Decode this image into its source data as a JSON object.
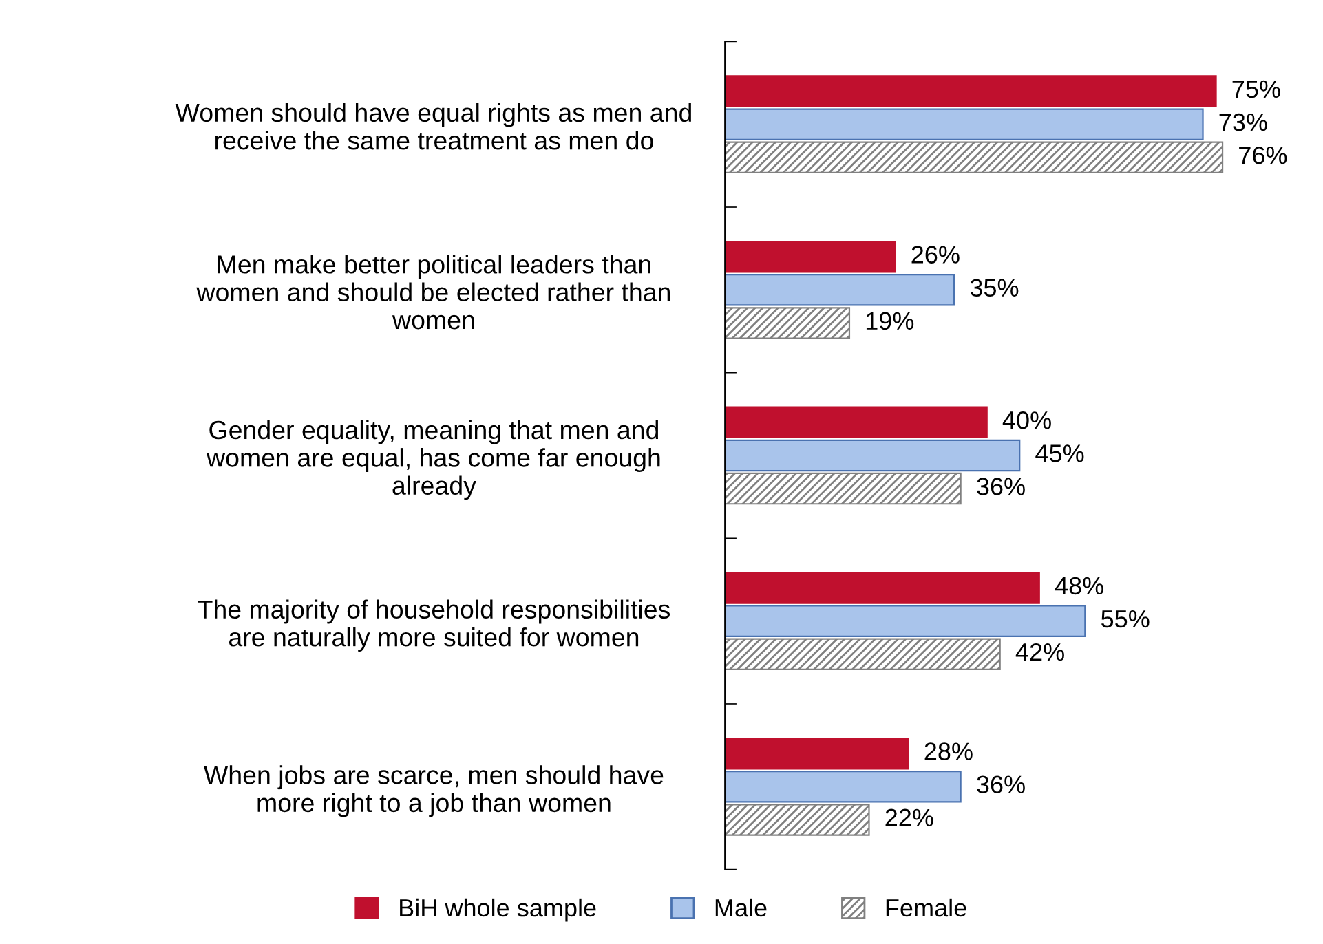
{
  "chart_data": {
    "type": "bar",
    "orientation": "horizontal",
    "legend": "bottom",
    "grid": false,
    "categories": [
      "Women should have equal rights as men and\nreceive the same treatment as men do",
      "Men make better political leaders than\nwomen and should be elected rather than\nwomen",
      "Gender equality, meaning that men and\nwomen are equal, has come far enough\nalready",
      "The majority of household responsibilities\nare naturally more suited for women",
      "When jobs are scarce, men should have\nmore right to a job than women"
    ],
    "series": [
      {
        "name": "BiH whole sample",
        "color": "#c0102e",
        "values": [
          75,
          26,
          40,
          48,
          28
        ],
        "value_labels": [
          "75%",
          "26%",
          "40%",
          "48%",
          "28%"
        ]
      },
      {
        "name": "Male",
        "color": "#a9c4eb",
        "values": [
          73,
          35,
          45,
          55,
          36
        ],
        "value_labels": [
          "73%",
          "35%",
          "45%",
          "55%",
          "36%"
        ]
      },
      {
        "name": "Female",
        "color": "#808080",
        "values": [
          76,
          19,
          36,
          42,
          22
        ],
        "value_labels": [
          "76%",
          "19%",
          "36%",
          "42%",
          "22%"
        ]
      }
    ]
  }
}
